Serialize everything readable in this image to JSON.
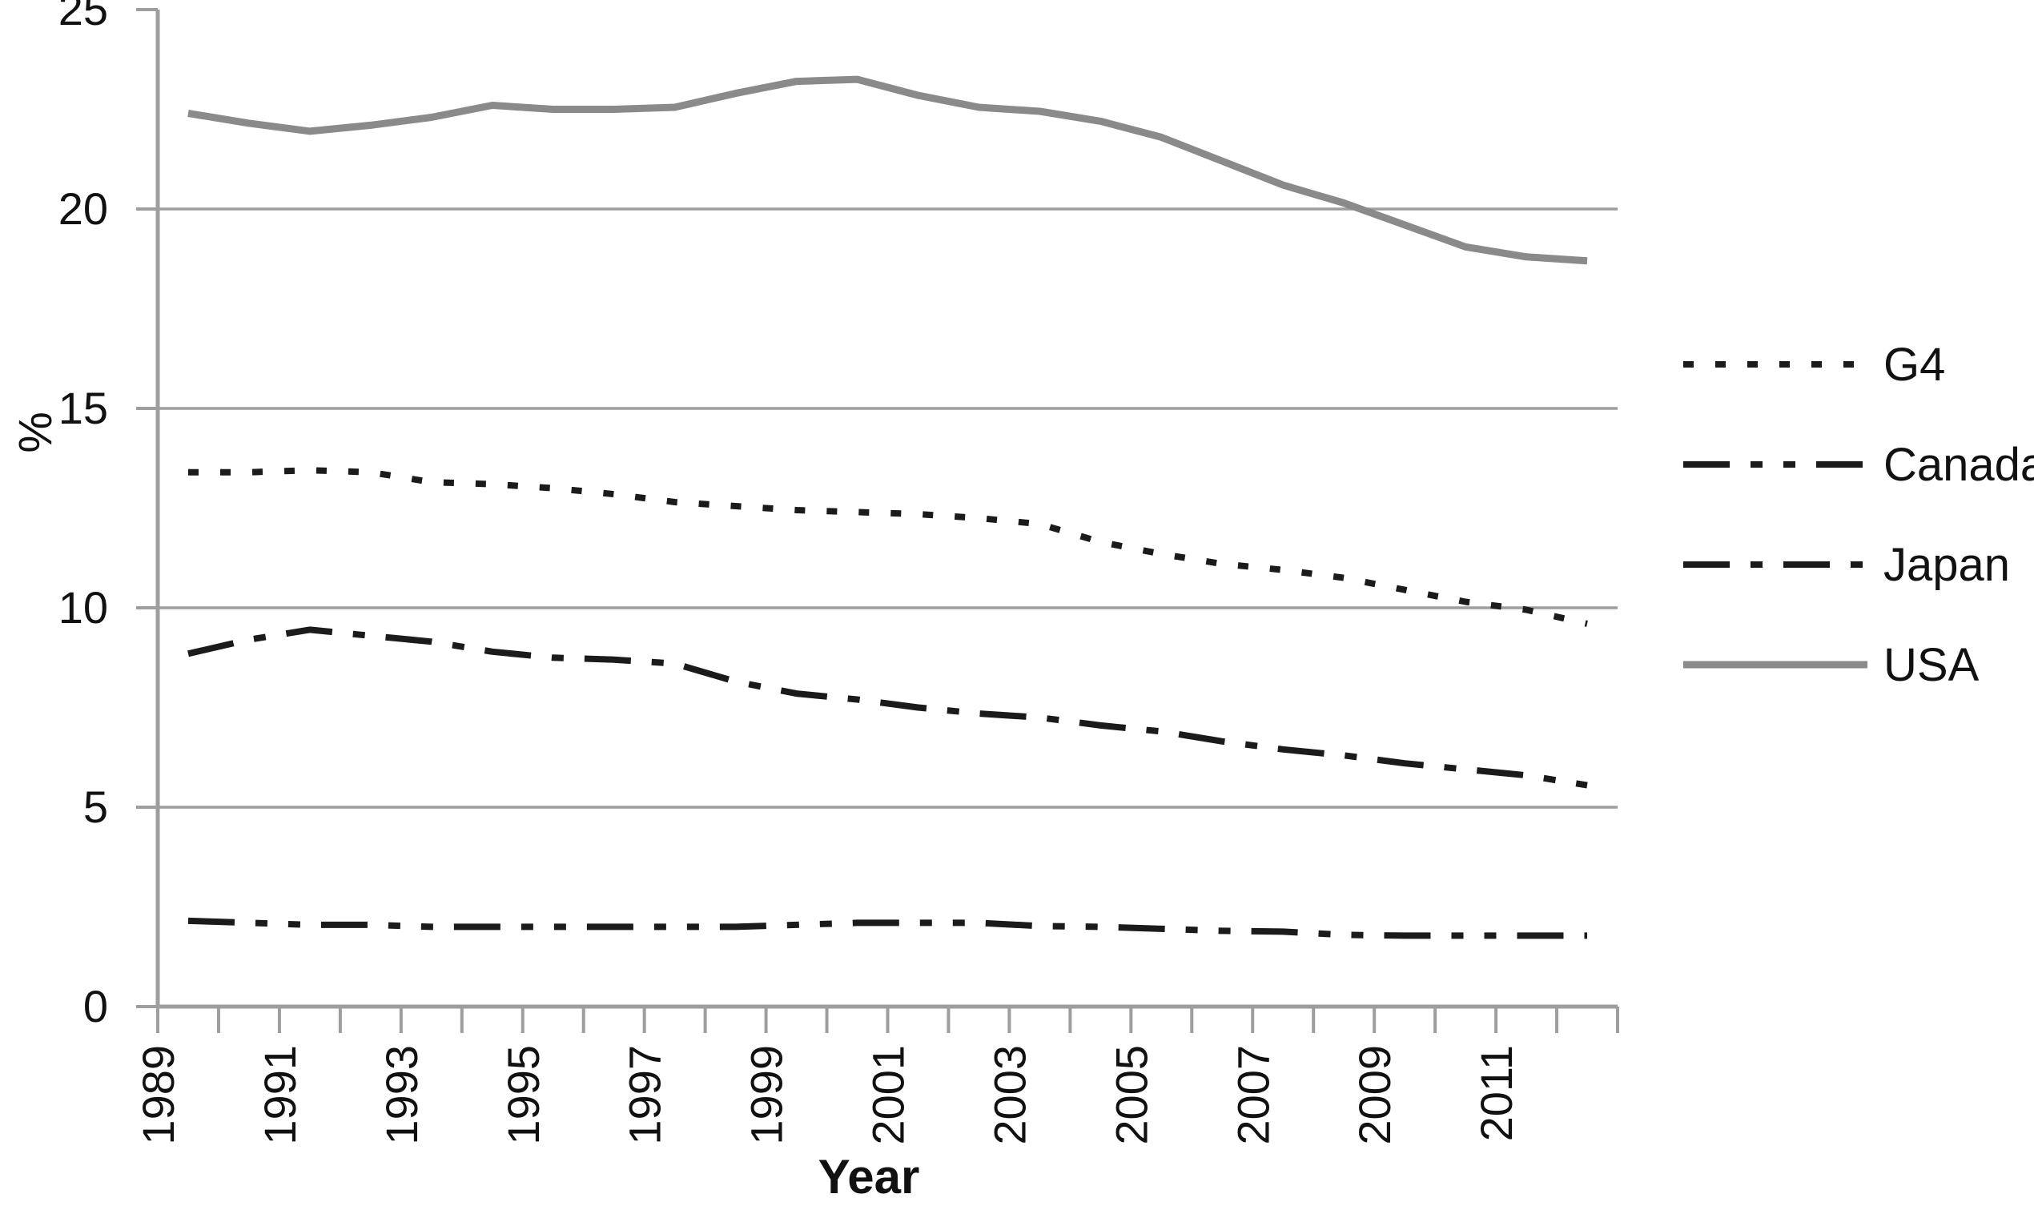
{
  "colors": {
    "series_black": "#1b1b1b",
    "usa_gray": "#8a8a8a",
    "grid_gray": "#9e9e9e",
    "text": "#111111"
  },
  "chart_data": {
    "type": "line",
    "title": "",
    "xlabel": "Year",
    "ylabel": "%",
    "ylim": [
      0,
      25
    ],
    "yticks": [
      0,
      5,
      10,
      15,
      20,
      25
    ],
    "grid": "horizontal gridlines at 5,10,15,20",
    "legend_position": "right",
    "x": [
      1989,
      1990,
      1991,
      1992,
      1993,
      1994,
      1995,
      1996,
      1997,
      1998,
      1999,
      2000,
      2001,
      2002,
      2003,
      2004,
      2005,
      2006,
      2007,
      2008,
      2009,
      2010,
      2011,
      2012
    ],
    "axis_ticks": {
      "x_minor_tick_years": [
        1989,
        1990,
        1991,
        1992,
        1993,
        1994,
        1995,
        1996,
        1997,
        1998,
        1999,
        2000,
        2001,
        2002,
        2003,
        2004,
        2005,
        2006,
        2007,
        2008,
        2009,
        2010,
        2011,
        2012,
        2013
      ],
      "x_labeled_years": [
        "1989",
        "1991",
        "1993",
        "1995",
        "1997",
        "1999",
        "2001",
        "2003",
        "2005",
        "2007",
        "2009",
        "2011"
      ],
      "y_tick_labels": [
        "0",
        "5",
        "10",
        "15",
        "20",
        "25"
      ]
    },
    "series": [
      {
        "name": "G4",
        "style": "dotted",
        "color": "#1b1b1b",
        "values": [
          13.4,
          13.4,
          13.45,
          13.4,
          13.15,
          13.1,
          13.0,
          12.85,
          12.65,
          12.55,
          12.45,
          12.4,
          12.35,
          12.25,
          12.1,
          11.65,
          11.35,
          11.1,
          10.95,
          10.75,
          10.45,
          10.15,
          9.95,
          9.6
        ]
      },
      {
        "name": "Canada",
        "style": "dash-dot-dot",
        "color": "#1b1b1b",
        "values": [
          2.15,
          2.1,
          2.05,
          2.05,
          2.0,
          2.0,
          2.0,
          2.0,
          2.0,
          2.0,
          2.05,
          2.1,
          2.1,
          2.1,
          2.02,
          2.0,
          1.95,
          1.9,
          1.88,
          1.8,
          1.78,
          1.78,
          1.78,
          1.78
        ]
      },
      {
        "name": "Japan",
        "style": "dash-dot",
        "color": "#1b1b1b",
        "values": [
          8.85,
          9.2,
          9.45,
          9.3,
          9.15,
          8.9,
          8.75,
          8.7,
          8.6,
          8.15,
          7.85,
          7.7,
          7.5,
          7.35,
          7.25,
          7.05,
          6.9,
          6.65,
          6.45,
          6.3,
          6.1,
          5.95,
          5.8,
          5.55
        ]
      },
      {
        "name": "USA",
        "style": "solid",
        "color": "#8a8a8a",
        "values": [
          22.4,
          22.15,
          21.95,
          22.1,
          22.3,
          22.6,
          22.5,
          22.5,
          22.55,
          22.9,
          23.2,
          23.25,
          22.85,
          22.55,
          22.45,
          22.2,
          21.8,
          21.2,
          20.6,
          20.15,
          19.6,
          19.05,
          18.8,
          18.7
        ]
      }
    ]
  }
}
